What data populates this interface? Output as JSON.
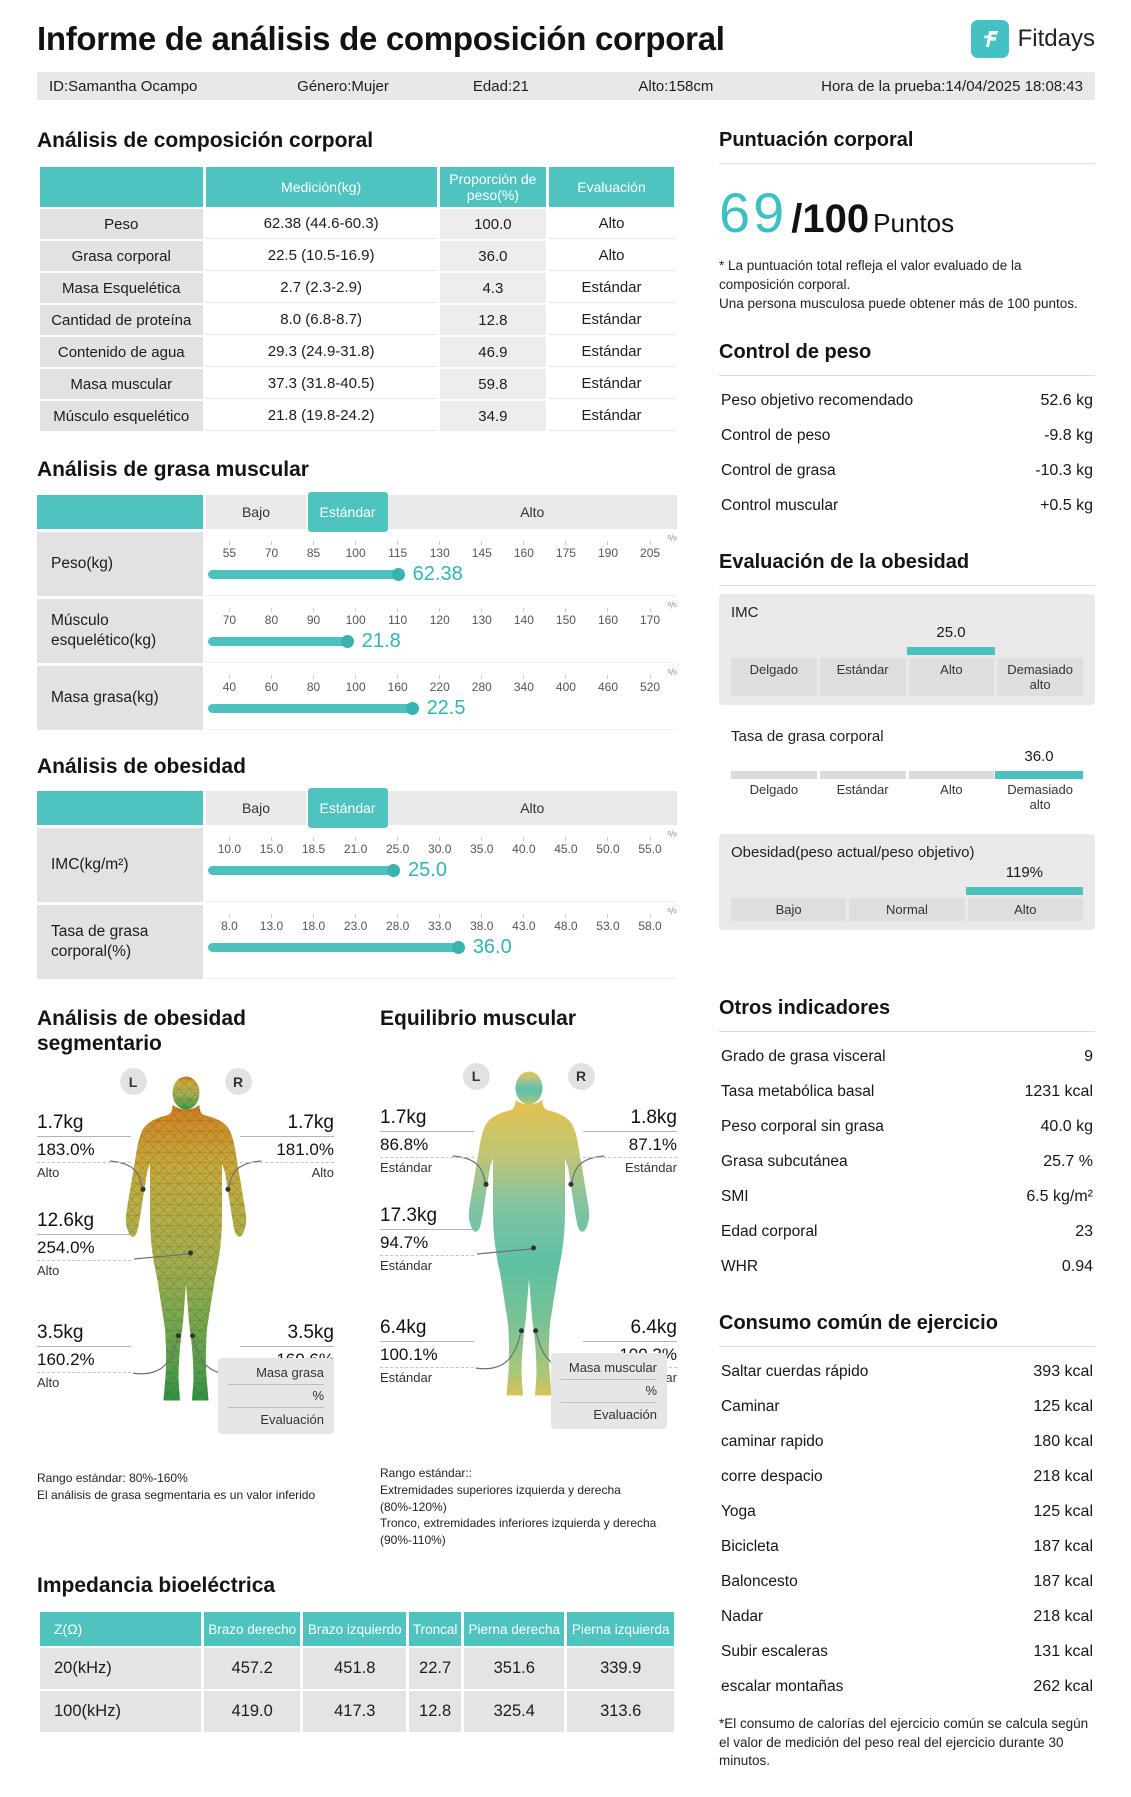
{
  "colors": {
    "teal": "#4fc3c0",
    "teal_dark": "#38b3b0"
  },
  "header": {
    "title": "Informe de análisis de composición corporal",
    "brand": "Fitdays"
  },
  "id_bar": {
    "id": "ID:Samantha Ocampo",
    "gender": "Género:Mujer",
    "age": "Edad:21",
    "height": "Alto:158cm",
    "time": "Hora de la prueba:14/04/2025 18:08:43"
  },
  "zones": {
    "low": "Bajo",
    "std": "Estándar",
    "high": "Alto",
    "pct_mark": "%"
  },
  "composition": {
    "title": "Análisis de composición corporal",
    "col_measure": "Medición(kg)",
    "col_ratio": "Proporción de peso(%)",
    "col_eval": "Evaluación",
    "rows": [
      {
        "label": "Peso",
        "measure": "62.38 (44.6-60.3)",
        "ratio": "100.0",
        "eval": "Alto"
      },
      {
        "label": "Grasa corporal",
        "measure": "22.5 (10.5-16.9)",
        "ratio": "36.0",
        "eval": "Alto"
      },
      {
        "label": "Masa Esquelética",
        "measure": "2.7 (2.3-2.9)",
        "ratio": "4.3",
        "eval": "Estándar"
      },
      {
        "label": "Cantidad de proteína",
        "measure": "8.0 (6.8-8.7)",
        "ratio": "12.8",
        "eval": "Estándar"
      },
      {
        "label": "Contenido de agua",
        "measure": "29.3 (24.9-31.8)",
        "ratio": "46.9",
        "eval": "Estándar"
      },
      {
        "label": "Masa muscular",
        "measure": "37.3 (31.8-40.5)",
        "ratio": "59.8",
        "eval": "Estándar"
      },
      {
        "label": "Músculo esquelético",
        "measure": "21.8 (19.8-24.2)",
        "ratio": "34.9",
        "eval": "Estándar"
      }
    ]
  },
  "muscle_fat": {
    "title": "Análisis de grasa muscular",
    "rows": [
      {
        "label": "Peso(kg)",
        "ticks": [
          "55",
          "70",
          "85",
          "100",
          "115",
          "130",
          "145",
          "160",
          "175",
          "190",
          "205"
        ],
        "value": "62.38",
        "bar_w": "42%"
      },
      {
        "label": "Músculo esquelético(kg)",
        "ticks": [
          "70",
          "80",
          "90",
          "100",
          "110",
          "120",
          "130",
          "140",
          "150",
          "160",
          "170"
        ],
        "value": "21.8",
        "bar_w": "31%"
      },
      {
        "label": "Masa grasa(kg)",
        "ticks": [
          "40",
          "60",
          "80",
          "100",
          "160",
          "220",
          "280",
          "340",
          "400",
          "460",
          "520"
        ],
        "value": "22.5",
        "bar_w": "45%"
      }
    ]
  },
  "obesity": {
    "title": "Análisis de obesidad",
    "rows": [
      {
        "label": "IMC(kg/m²)",
        "ticks": [
          "10.0",
          "15.0",
          "18.5",
          "21.0",
          "25.0",
          "30.0",
          "35.0",
          "40.0",
          "45.0",
          "50.0",
          "55.0"
        ],
        "value": "25.0",
        "bar_w": "41%"
      },
      {
        "label": "Tasa de grasa corporal(%)",
        "ticks": [
          "8.0",
          "13.0",
          "18.0",
          "23.0",
          "28.0",
          "33.0",
          "38.0",
          "43.0",
          "48.0",
          "53.0",
          "58.0"
        ],
        "value": "36.0",
        "bar_w": "55%"
      }
    ]
  },
  "segmental": {
    "title": "Análisis de obesidad segmentario",
    "badge_left": "L",
    "badge_right": "R",
    "arm_left": {
      "kg": "1.7kg",
      "pct": "183.0%",
      "eval": "Alto"
    },
    "arm_right": {
      "kg": "1.7kg",
      "pct": "181.0%",
      "eval": "Alto"
    },
    "trunk": {
      "kg": "12.6kg",
      "pct": "254.0%",
      "eval": "Alto"
    },
    "leg_left": {
      "kg": "3.5kg",
      "pct": "160.2%",
      "eval": "Alto"
    },
    "leg_right": {
      "kg": "3.5kg",
      "pct": "160.6%",
      "eval": "Alto"
    },
    "legend": [
      "Masa grasa",
      "%",
      "Evaluación"
    ],
    "notes": [
      "Rango estándar:  80%-160%",
      "El análisis de grasa segmentaria es un valor inferido"
    ]
  },
  "balance": {
    "title": "Equilibrio muscular",
    "badge_left": "L",
    "badge_right": "R",
    "arm_left": {
      "kg": "1.7kg",
      "pct": "86.8%",
      "eval": "Estándar"
    },
    "arm_right": {
      "kg": "1.8kg",
      "pct": "87.1%",
      "eval": "Estándar"
    },
    "trunk": {
      "kg": "17.3kg",
      "pct": "94.7%",
      "eval": "Estándar"
    },
    "leg_left": {
      "kg": "6.4kg",
      "pct": "100.1%",
      "eval": "Estándar"
    },
    "leg_right": {
      "kg": "6.4kg",
      "pct": "100.3%",
      "eval": "Estándar"
    },
    "legend": [
      "Masa muscular",
      "%",
      "Evaluación"
    ],
    "notes": [
      "Rango estándar::",
      "Extremidades superiores izquierda y derecha",
      "(80%-120%)",
      "Tronco, extremidades inferiores izquierda y derecha",
      "(90%-110%)"
    ]
  },
  "impedance": {
    "title": "Impedancia bioeléctrica",
    "columns": [
      "Z(Ω)",
      "Brazo derecho",
      "Brazo izquierdo",
      "Troncal",
      "Pierna derecha",
      "Pierna izquierda"
    ],
    "rows": [
      {
        "label": "20(kHz)",
        "values": [
          "457.2",
          "451.8",
          "22.7",
          "351.6",
          "339.9"
        ]
      },
      {
        "label": "100(kHz)",
        "values": [
          "419.0",
          "417.3",
          "12.8",
          "325.4",
          "313.6"
        ]
      }
    ]
  },
  "score": {
    "title": "Puntuación corporal",
    "value": "69",
    "denom": "/100",
    "unit": "Puntos",
    "note1": "* La puntuación total refleja el valor evaluado de la composición corporal.",
    "note2": "Una persona musculosa puede obtener más de 100 puntos."
  },
  "weight_control": {
    "title": "Control de peso",
    "rows": [
      {
        "label": "Peso objetivo recomendado",
        "value": "52.6 kg"
      },
      {
        "label": "Control de peso",
        "value": "-9.8 kg"
      },
      {
        "label": "Control de grasa",
        "value": "-10.3 kg"
      },
      {
        "label": "Control muscular",
        "value": "+0.5 kg"
      }
    ]
  },
  "obesity_eval": {
    "title": "Evaluación de la obesidad",
    "imc": {
      "label": "IMC",
      "value": "25.0",
      "labels": [
        "Delgado",
        "Estándar",
        "Alto",
        "Demasiado alto"
      ],
      "active_left": "50%",
      "active_width": "25%"
    },
    "fat": {
      "label": "Tasa de grasa corporal",
      "value": "36.0",
      "labels": [
        "Delgado",
        "Estándar",
        "Alto",
        "Demasiado alto"
      ],
      "active_left": "75%",
      "active_width": "25%"
    },
    "ratio": {
      "label": "Obesidad(peso actual/peso objetivo)",
      "value": "119%",
      "labels": [
        "Bajo",
        "Normal",
        "Alto"
      ],
      "active_left": "66.7%",
      "active_width": "33.3%"
    }
  },
  "other": {
    "title": "Otros indicadores",
    "rows": [
      {
        "label": "Grado de grasa visceral",
        "value": "9"
      },
      {
        "label": "Tasa metabólica basal",
        "value": "1231 kcal"
      },
      {
        "label": "Peso corporal sin grasa",
        "value": "40.0 kg"
      },
      {
        "label": "Grasa subcutánea",
        "value": "25.7 %"
      },
      {
        "label": "SMI",
        "value": "6.5 kg/m²"
      },
      {
        "label": "Edad corporal",
        "value": "23"
      },
      {
        "label": "WHR",
        "value": "0.94"
      }
    ]
  },
  "exercise": {
    "title": "Consumo común de ejercicio",
    "rows": [
      {
        "label": "Saltar cuerdas rápido",
        "value": "393 kcal"
      },
      {
        "label": "Caminar",
        "value": "125 kcal"
      },
      {
        "label": "caminar rapido",
        "value": "180 kcal"
      },
      {
        "label": "corre despacio",
        "value": "218 kcal"
      },
      {
        "label": "Yoga",
        "value": "125 kcal"
      },
      {
        "label": "Bicicleta",
        "value": "187 kcal"
      },
      {
        "label": "Baloncesto",
        "value": "187 kcal"
      },
      {
        "label": "Nadar",
        "value": "218 kcal"
      },
      {
        "label": "Subir escaleras",
        "value": "131 kcal"
      },
      {
        "label": "escalar montañas",
        "value": "262 kcal"
      }
    ],
    "note": "*El consumo de calorías del ejercicio común se calcula según el valor de medición del peso real del ejercicio durante 30 minutos."
  }
}
